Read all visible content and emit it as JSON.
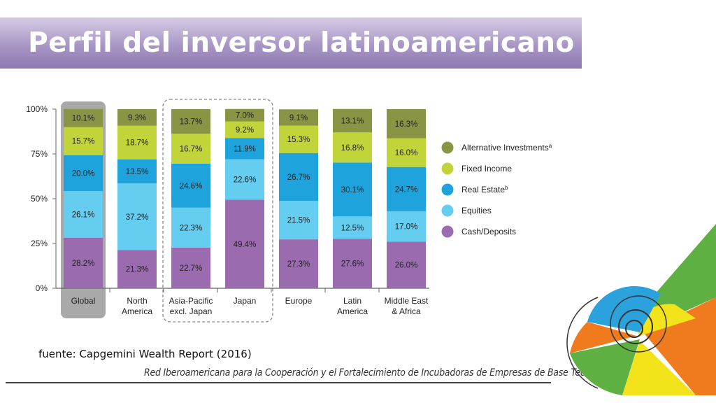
{
  "slide": {
    "title": "Perfil del inversor latinoamericano",
    "source": "fuente: Capgemini Wealth Report (2016)",
    "footer": "Red Iberoamericana para la Cooperación y el Fortalecimiento de Incubadoras de Empresas de Base Tecnológica"
  },
  "chart_data": {
    "type": "bar",
    "stacked": true,
    "normalized": true,
    "categories": [
      "Global",
      "North\nAmerica",
      "Asia-Pacific\nexcl. Japan",
      "Japan",
      "Europe",
      "Latin\nAmerica",
      "Middle East\n& Africa"
    ],
    "series": [
      {
        "name": "Cash/Deposits",
        "color": "#9b6bb0",
        "values": [
          28.2,
          21.3,
          22.7,
          49.4,
          27.3,
          27.6,
          26.0
        ]
      },
      {
        "name": "Equities",
        "color": "#65cdf0",
        "values": [
          26.1,
          37.2,
          22.3,
          22.6,
          21.5,
          12.5,
          17.0
        ]
      },
      {
        "name": "Real Estate",
        "superscript": "b",
        "color": "#1ea3dc",
        "values": [
          20.0,
          13.5,
          24.6,
          11.9,
          26.7,
          30.1,
          24.7
        ]
      },
      {
        "name": "Fixed Income",
        "color": "#c1d53b",
        "values": [
          15.7,
          18.7,
          16.7,
          9.2,
          15.3,
          16.8,
          16.0
        ]
      },
      {
        "name": "Alternative Investments",
        "superscript": "a",
        "color": "#8a9445",
        "values": [
          10.1,
          9.3,
          13.7,
          7.0,
          9.1,
          13.1,
          16.3
        ]
      }
    ],
    "y_ticks": [
      "0%",
      "25%",
      "50%",
      "75%",
      "100%"
    ],
    "ylim": [
      0,
      100
    ],
    "highlighted_category": "Global",
    "grouped_categories": [
      "Asia-Pacific\nexcl. Japan",
      "Japan"
    ],
    "legend_position": "right",
    "grid": false
  }
}
